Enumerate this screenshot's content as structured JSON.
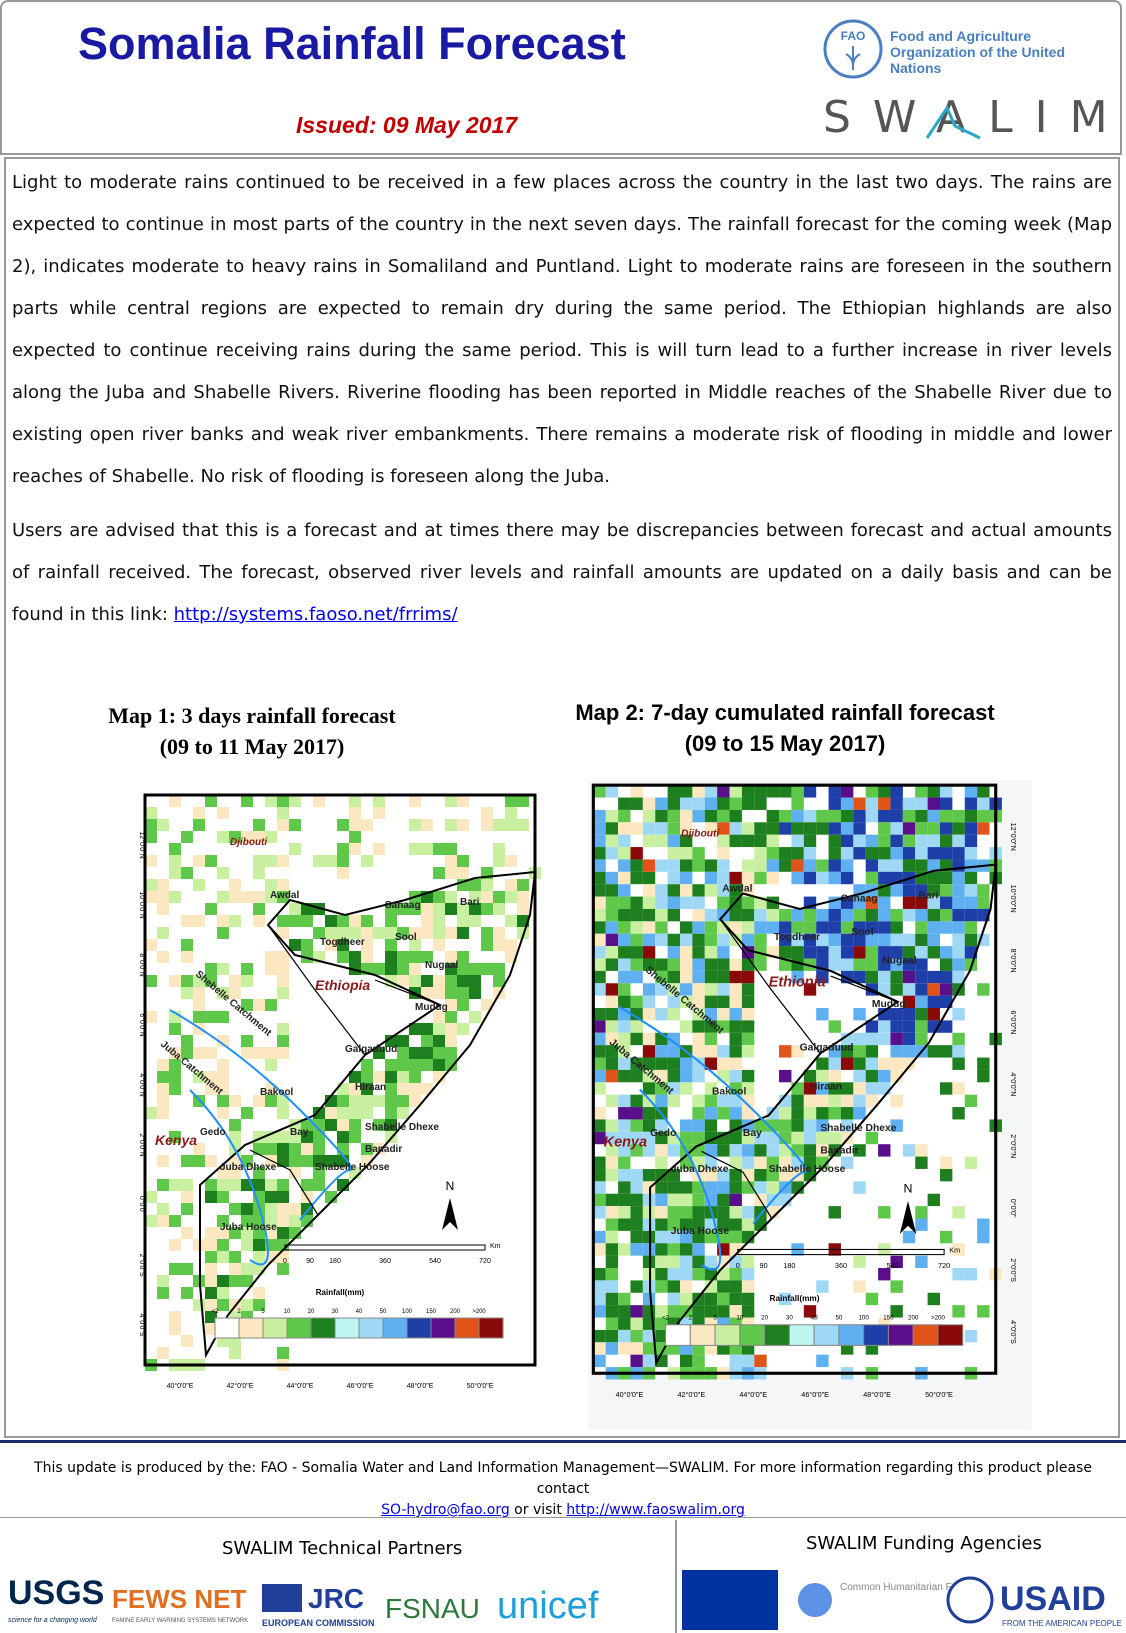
{
  "header": {
    "title": "Somalia Rainfall Forecast",
    "issued": "Issued:  09 May 2017",
    "org": "Food and Agriculture Organization of the United Nations",
    "fao": "FAO",
    "swalim": "SWALIM"
  },
  "body": {
    "paragraphs": [
      "Light to moderate rains continued to be received in a few places across the country in the last two days. The rains are expected to continue in most parts of the country in the next seven days. The rainfall forecast for the coming week (Map 2), indicates moderate to heavy rains in Somaliland and Puntland. Light to moderate rains are foreseen in the southern parts while central regions are expected to remain dry during the same period. The Ethiopian highlands are also expected to continue receiving rains during the same period. This is will turn lead to a further increase in  river levels along the Juba and Shabelle Rivers. Riverine flooding has been reported in Middle reaches of the Shabelle River due to existing open river banks and weak river embankments. There remains a moderate risk of flooding in middle and lower reaches of Shabelle. No risk of flooding is foreseen along the Juba.",
      "Users are  advised that this is a forecast  and at times there may be discrepancies between forecast and actual amounts of rainfall received. The forecast, observed river levels and rainfall amounts are updated on a daily basis and can be found in this link: "
    ],
    "link": "http://systems.faoso.net/frrims/"
  },
  "maps": [
    {
      "title": "Map 1: 3 days rainfall forecast",
      "subtitle": "(09 to 11 May 2017)"
    },
    {
      "title": "Map 2: 7-day cumulated rainfall forecast",
      "subtitle": "(09 to 15 May 2017)"
    }
  ],
  "map_labels": {
    "places": [
      "Djibouti",
      "Awdal",
      "Sanaag",
      "Bari",
      "Togdheer",
      "Sool",
      "Nugaal",
      "Ethiopia",
      "Mudug",
      "Galgaduud",
      "Hiraan",
      "Bakool",
      "Bay",
      "Gedo",
      "Kenya",
      "Shabelle Dhexe",
      "Banadir",
      "Juba Dhexe",
      "Shabelle Hoose",
      "Juba Hoose",
      "Shebelle Catchment",
      "Juba Catchment"
    ],
    "north": "N",
    "scale": [
      "0",
      "90",
      "180",
      "360",
      "540",
      "720"
    ],
    "scale_unit": "Km",
    "legend_title": "Rainfall(mm)",
    "legend": [
      "<2",
      "2",
      "5",
      "10",
      "20",
      "30",
      "40",
      "50",
      "100",
      "150",
      "200",
      ">200"
    ],
    "lon": [
      "40°0'0\"E",
      "42°0'0\"E",
      "44°0'0\"E",
      "46°0'0\"E",
      "48°0'0\"E",
      "50°0'0\"E"
    ],
    "lat": [
      "12°0'0\"N",
      "10°0'0\"N",
      "8°0'0\"N",
      "6°0'0\"N",
      "4°0'0\"N",
      "2°0'0\"N",
      "0°0'0\"",
      "2°0'0\"S",
      "4°0'0\"S"
    ]
  },
  "footer": {
    "text": "This update is produced by the: FAO - Somalia Water and Land Information Management—SWALIM. For more information regarding this product please contact ",
    "email": "SO-hydro@fao.org",
    "or_visit": " or visit ",
    "site": "http://www.faoswalim.org"
  },
  "partners": {
    "technical": "SWALIM Technical Partners",
    "funding": "SWALIM Funding Agencies",
    "usgs": "USGS",
    "usgs_tag": "science for a changing world",
    "fews": "FEWS NET",
    "fews_tag": "FAMINE EARLY WARNING SYSTEMS NETWORK",
    "jrc": "JRC",
    "ec": "EUROPEAN COMMISSION",
    "fsnau": "FSNAU",
    "unicef": "unicef",
    "chf": "Common Humanitarian Fund",
    "usaid": "USAID",
    "usaid_tag": "FROM THE AMERICAN PEOPLE"
  }
}
